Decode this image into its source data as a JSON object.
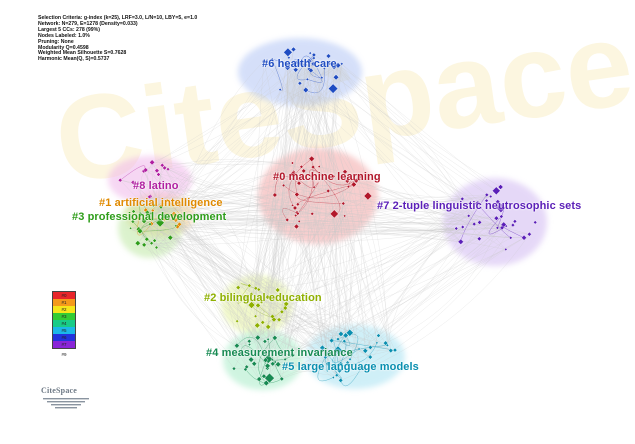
{
  "stats": {
    "lines": [
      "Selection Criteria: g-index (k=25), LRF=3.0, L/N=10, LBY=5, e=1.0",
      "Network: N=279, E=1278 (Density=0.033)",
      "Largest 5 CCs: 278 (99%)",
      "Nodes Labeled: 1.0%",
      "Pruning: None",
      "Modularity Q=0.4598",
      "Weighted Mean Silhouette S=0.7628",
      "Harmonic Mean(Q, S)=0.5737"
    ]
  },
  "clusters": [
    {
      "id": "c0",
      "label": "#0 machine learning",
      "color": "#b2182b",
      "hull": "#f2a7a7"
    },
    {
      "id": "c1",
      "label": "#1 artificial intelligence",
      "color": "#e08a00",
      "hull": "#f7d08a"
    },
    {
      "id": "c2",
      "label": "#2 bilingual education",
      "color": "#8fb000",
      "hull": "#e4f2a0"
    },
    {
      "id": "c3",
      "label": "#3 professional development",
      "color": "#2e9d1a",
      "hull": "#bfe8a5"
    },
    {
      "id": "c4",
      "label": "#4 measurement invariance",
      "color": "#178a52",
      "hull": "#a8ecc8"
    },
    {
      "id": "c5",
      "label": "#5 large language models",
      "color": "#0a8fb0",
      "hull": "#a8e2f2"
    },
    {
      "id": "c6",
      "label": "#6 health care",
      "color": "#1f4cc2",
      "hull": "#b3c6f5"
    },
    {
      "id": "c7",
      "label": "#7 2-tuple linguistic neutrosophic sets",
      "color": "#5b1fb8",
      "hull": "#d1b9f2"
    },
    {
      "id": "c8",
      "label": "#8 latino",
      "color": "#b01fa0",
      "hull": "#f0b7ea"
    }
  ],
  "legend": {
    "swatches": [
      {
        "label": "#0",
        "color": "#e8252a"
      },
      {
        "label": "#1",
        "color": "#f59a1b"
      },
      {
        "label": "#2",
        "color": "#f6e61a"
      },
      {
        "label": "#3",
        "color": "#33cc33"
      },
      {
        "label": "#4",
        "color": "#18cc88"
      },
      {
        "label": "#5",
        "color": "#1bb8e8"
      },
      {
        "label": "#6",
        "color": "#2233dd"
      },
      {
        "label": "#7",
        "color": "#8a25d8"
      },
      {
        "label": "#8",
        "color": "#e02ee0"
      }
    ],
    "footer": "#9"
  },
  "logo": {
    "text": "CiteSpace"
  },
  "watermark": {
    "text": "CiteSpace"
  }
}
